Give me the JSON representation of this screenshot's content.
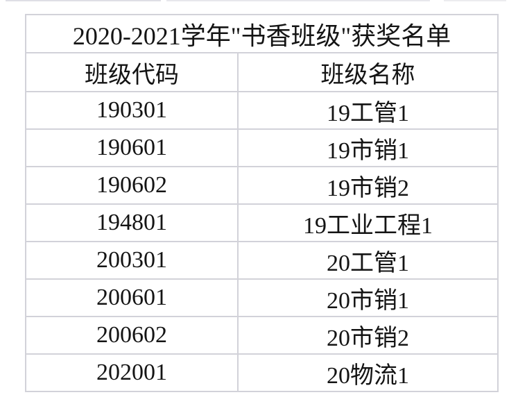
{
  "page": {
    "background": "#ffffff",
    "border_color": "#d2d2d9",
    "text_color": "#141414",
    "cropped_row_edge_color": "#dfdfe5"
  },
  "table": {
    "title": "2020-2021学年\"书香班级\"获奖名单",
    "columns": [
      "班级代码",
      "班级名称"
    ],
    "rows": [
      [
        "190301",
        "19工管1"
      ],
      [
        "190601",
        "19市销1"
      ],
      [
        "190602",
        "19市销2"
      ],
      [
        "194801",
        "19工业工程1"
      ],
      [
        "200301",
        "20工管1"
      ],
      [
        "200601",
        "20市销1"
      ],
      [
        "200602",
        "20市销2"
      ],
      [
        "202001",
        "20物流1"
      ]
    ]
  }
}
